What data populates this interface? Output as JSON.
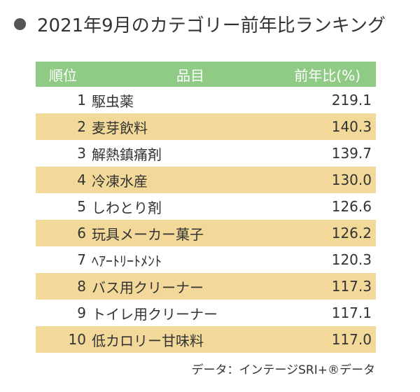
{
  "title": "2021年9月のカテゴリー前年比ランキング",
  "table": {
    "headers": {
      "rank": "順位",
      "item": "品目",
      "ratio": "前年比(%)"
    },
    "rows": [
      {
        "rank": "1",
        "item": "駆虫薬",
        "ratio": "219.1"
      },
      {
        "rank": "2",
        "item": "麦芽飲料",
        "ratio": "140.3"
      },
      {
        "rank": "3",
        "item": "解熱鎮痛剤",
        "ratio": "139.7"
      },
      {
        "rank": "4",
        "item": "冷凍水産",
        "ratio": "130.0"
      },
      {
        "rank": "5",
        "item": "しわとり剤",
        "ratio": "126.6"
      },
      {
        "rank": "6",
        "item": "玩具メーカー菓子",
        "ratio": "126.2"
      },
      {
        "rank": "7",
        "item": "ﾍｱｰﾄﾘｰﾄﾒﾝﾄ",
        "ratio": "120.3"
      },
      {
        "rank": "8",
        "item": "バス用クリーナー",
        "ratio": "117.3"
      },
      {
        "rank": "9",
        "item": "トイレ用クリーナー",
        "ratio": "117.1"
      },
      {
        "rank": "10",
        "item": "低カロリー甘味料",
        "ratio": "117.0"
      }
    ]
  },
  "source": "データ：インテージSRI+®データ",
  "colors": {
    "header_bg": "#8fcb85",
    "stripe_bg": "#f2d999",
    "bullet": "#555555"
  }
}
